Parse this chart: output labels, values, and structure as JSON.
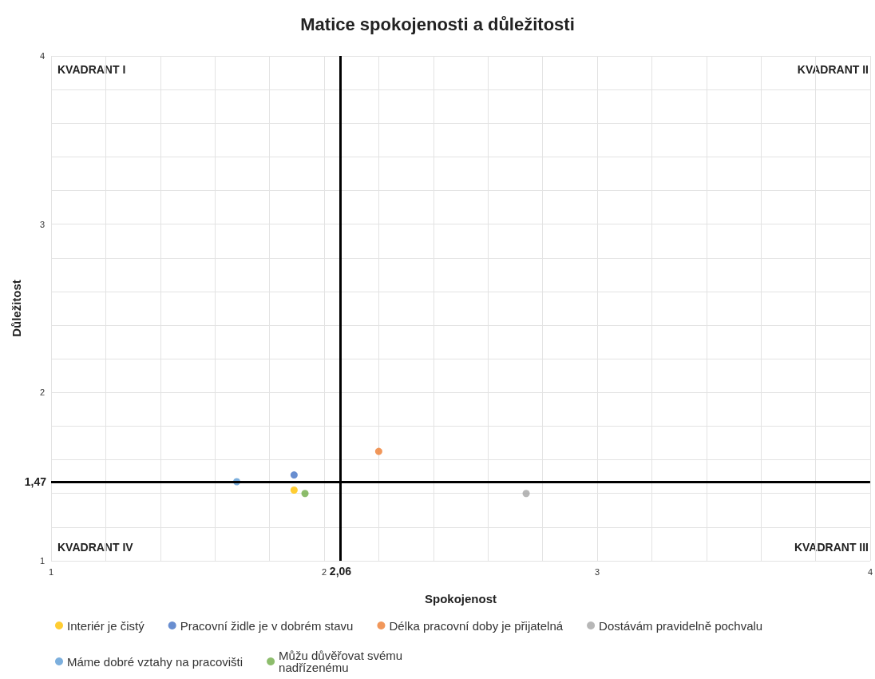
{
  "chart_data": {
    "type": "scatter",
    "title": "Matice spokojenosti a důležitosti",
    "xlabel": "Spokojenost",
    "ylabel": "Důležitost",
    "xlim": [
      1,
      4
    ],
    "ylim": [
      1,
      4
    ],
    "xticks": [
      1,
      {
        "value": 1.2,
        "label": null
      },
      {
        "value": 1.4,
        "label": null
      },
      {
        "value": 1.6,
        "label": null
      },
      {
        "value": 1.8,
        "label": null
      },
      2,
      {
        "value": 2.2,
        "label": null
      },
      {
        "value": 2.4,
        "label": null
      },
      {
        "value": 2.6,
        "label": null
      },
      {
        "value": 2.8,
        "label": null
      },
      3,
      {
        "value": 3.2,
        "label": null
      },
      {
        "value": 3.4,
        "label": null
      },
      {
        "value": 3.6,
        "label": null
      },
      {
        "value": 3.8,
        "label": null
      },
      4
    ],
    "yticks": [
      1,
      {
        "value": 1.2,
        "label": null
      },
      {
        "value": 1.4,
        "label": null
      },
      {
        "value": 1.6,
        "label": null
      },
      {
        "value": 1.8,
        "label": null
      },
      2,
      {
        "value": 2.2,
        "label": null
      },
      {
        "value": 2.4,
        "label": null
      },
      {
        "value": 2.6,
        "label": null
      },
      {
        "value": 2.8,
        "label": null
      },
      3,
      {
        "value": 3.2,
        "label": null
      },
      {
        "value": 3.4,
        "label": null
      },
      {
        "value": 3.6,
        "label": null
      },
      {
        "value": 3.8,
        "label": null
      },
      4
    ],
    "grid": true,
    "legend": "bottom",
    "marker": "circle",
    "series": [
      {
        "name": "Interiér je čistý",
        "color": "#ffc000",
        "x": [
          1.89
        ],
        "values": [
          1.42
        ]
      },
      {
        "name": "Pracovní židle je v dobrém stavu",
        "color": "#4472c4",
        "x": [
          1.89
        ],
        "values": [
          1.51
        ]
      },
      {
        "name": "Délka pracovní doby je přijatelná",
        "color": "#ed7d31",
        "x": [
          2.2
        ],
        "values": [
          1.65
        ]
      },
      {
        "name": "Dostávám pravidelně pochvalu",
        "color": "#a5a5a5",
        "x": [
          2.74
        ],
        "values": [
          1.4
        ]
      },
      {
        "name": "Máme dobré vztahy na pracovišti",
        "color": "#5b9bd5",
        "x": [
          1.68
        ],
        "values": [
          1.47
        ]
      },
      {
        "name": "Můžu důvěřovat svému nadřízenému",
        "color": "#70ad47",
        "x": [
          1.93
        ],
        "values": [
          1.4
        ]
      }
    ],
    "ref_lines": [
      {
        "axis": "x",
        "value": 2.06,
        "label": "2,06",
        "color": "#000000"
      },
      {
        "axis": "y",
        "value": 1.47,
        "label": "1,47",
        "color": "#000000"
      }
    ],
    "annotations": [
      "KVADRANT I",
      "KVADRANT II",
      "KVADRANT III",
      "KVADRANT IV"
    ]
  }
}
